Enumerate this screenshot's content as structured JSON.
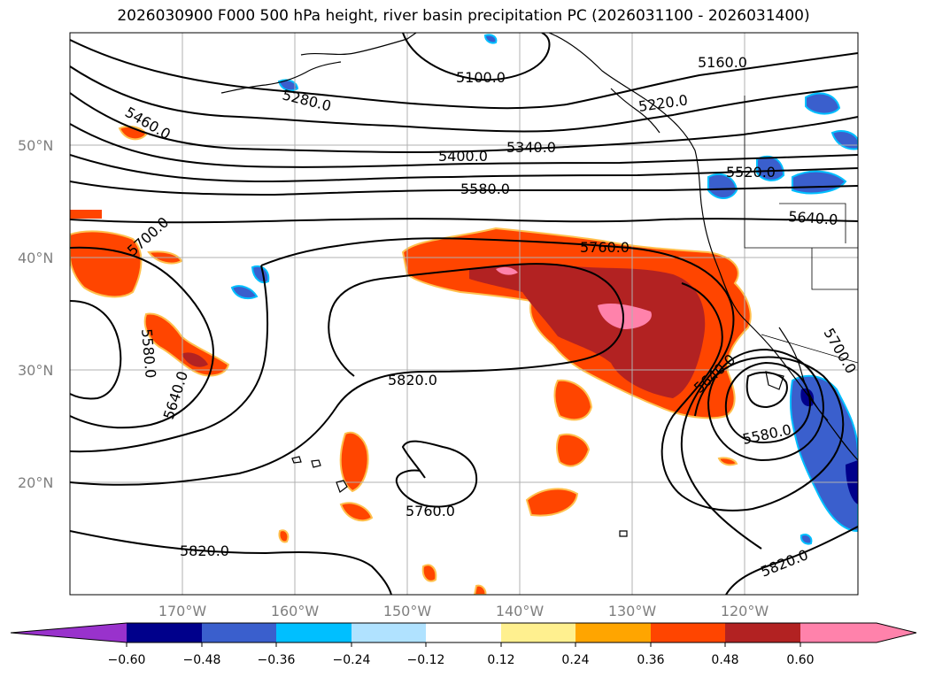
{
  "title": "2026030900 F000 500 hPa height, river basin precipitation PC (2026031100 - 2026031400)",
  "map": {
    "lat_labels": [
      "50°N",
      "40°N",
      "30°N",
      "20°N"
    ],
    "lon_labels": [
      "170°W",
      "160°W",
      "150°W",
      "140°W",
      "130°W",
      "120°W"
    ],
    "contour_labels": [
      "5100.0",
      "5160.0",
      "5280.0",
      "5220.0",
      "5460.0",
      "5340.0",
      "5400.0",
      "5520.0",
      "5580.0",
      "5640.0",
      "5700.0",
      "5760.0",
      "5580.0",
      "5640.0",
      "5820.0",
      "5640.0",
      "5700.0",
      "5580.0",
      "5760.0",
      "5820.0",
      "5820.0"
    ]
  },
  "colorbar": {
    "ticks": [
      "−0.60",
      "−0.48",
      "−0.36",
      "−0.24",
      "−0.12",
      "0.12",
      "0.24",
      "0.36",
      "0.48",
      "0.60"
    ],
    "colors": [
      "#9932cc",
      "#00008b",
      "#3a5fcd",
      "#00bfff",
      "#b0e2ff",
      "#ffffff",
      "#fff08f",
      "#ffa500",
      "#ff4500",
      "#b22222",
      "#ff82ab"
    ]
  }
}
